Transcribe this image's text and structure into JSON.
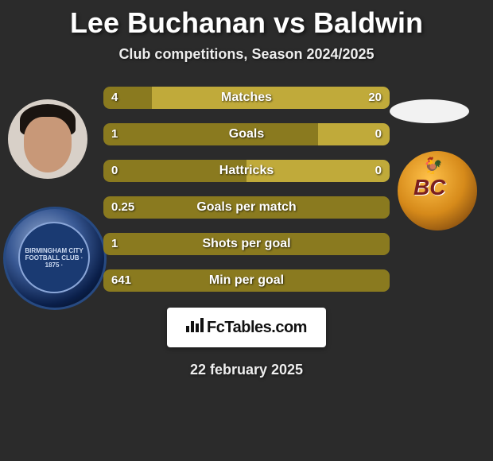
{
  "title": "Lee Buchanan vs Baldwin",
  "subtitle": "Club competitions, Season 2024/2025",
  "date": "22 february 2025",
  "branding": "FcTables.com",
  "colors": {
    "bar_left": "#8a7a1f",
    "bar_right": "#c0aa3a",
    "empty": "#6a5f22",
    "background": "#2b2b2b",
    "text": "#ffffff"
  },
  "stats": [
    {
      "label": "Matches",
      "left_val": "4",
      "right_val": "20",
      "left_pct": 17,
      "right_pct": 83
    },
    {
      "label": "Goals",
      "left_val": "1",
      "right_val": "0",
      "left_pct": 75,
      "right_pct": 25
    },
    {
      "label": "Hattricks",
      "left_val": "0",
      "right_val": "0",
      "left_pct": 50,
      "right_pct": 50
    },
    {
      "label": "Goals per match",
      "left_val": "0.25",
      "right_val": "",
      "left_pct": 100,
      "right_pct": 0
    },
    {
      "label": "Shots per goal",
      "left_val": "1",
      "right_val": "",
      "left_pct": 100,
      "right_pct": 0
    },
    {
      "label": "Min per goal",
      "left_val": "641",
      "right_val": "",
      "left_pct": 100,
      "right_pct": 0
    }
  ],
  "club_left_text": "BIRMINGHAM CITY\nFOOTBALL CLUB\n· 1875 ·",
  "club_right_text": "BC"
}
